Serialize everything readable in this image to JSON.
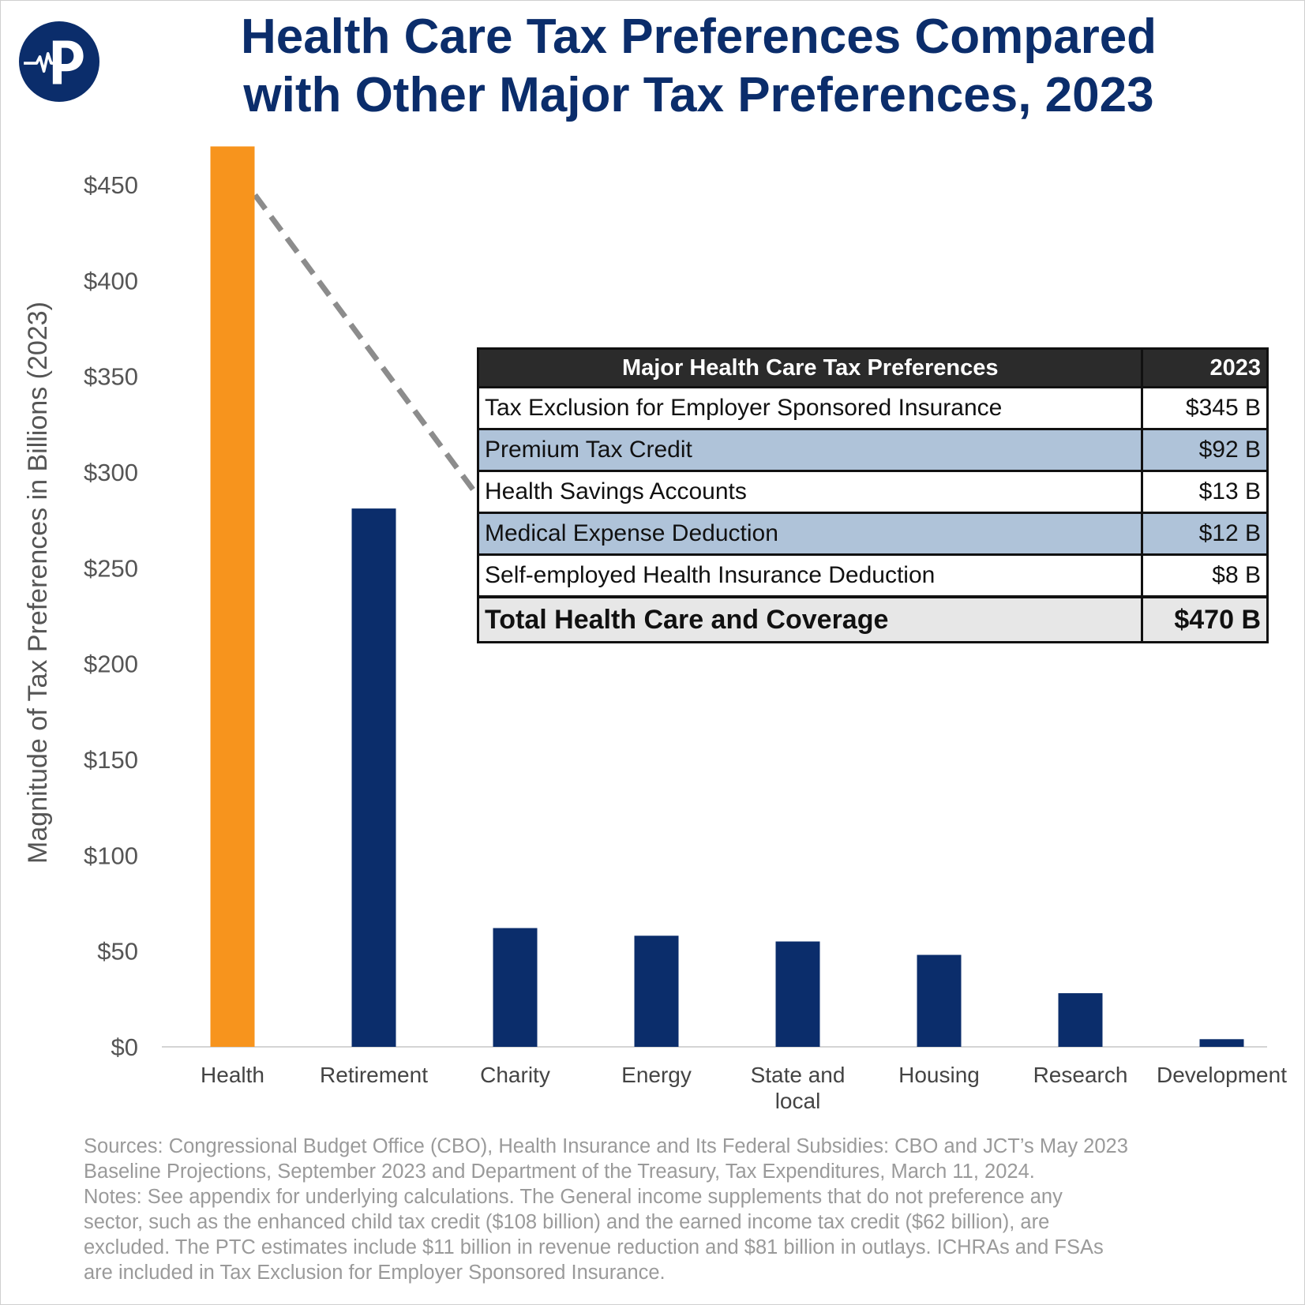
{
  "title": {
    "line1": "Health Care Tax Preferences Compared",
    "line2": "with Other Major Tax Preferences, 2023"
  },
  "logo": {
    "icon": "heartbeat-p-logo-icon",
    "color": "#0b2d6b"
  },
  "colors": {
    "highlight": "#f7941d",
    "bar": "#0b2d6b",
    "dashed": "#8c8c8c"
  },
  "chart_data": {
    "type": "bar",
    "title": "Health Care Tax Preferences Compared with Other Major Tax Preferences, 2023",
    "xlabel": "",
    "ylabel": "Magnitude of Tax Preferences in Billions (2023)",
    "categories": [
      "Health",
      "Retirement",
      "Charity",
      "Energy",
      "State and local",
      "Housing",
      "Research",
      "Development"
    ],
    "values": [
      470,
      281,
      62,
      58,
      55,
      48,
      28,
      4
    ],
    "highlight_index": 0,
    "ylim": [
      0,
      470
    ],
    "yticks": [
      0,
      50,
      100,
      150,
      200,
      250,
      300,
      350,
      400,
      450
    ],
    "ytick_labels": [
      "$0",
      "$50",
      "$100",
      "$150",
      "$200",
      "$250",
      "$300",
      "$350",
      "$400",
      "$450"
    ],
    "grid": false
  },
  "inset_table": {
    "header": [
      "Major Health Care Tax Preferences",
      "2023"
    ],
    "rows": [
      {
        "label": "Tax Exclusion for Employer Sponsored Insurance",
        "value": "$345 B"
      },
      {
        "label": "Premium Tax Credit",
        "value": "$92 B"
      },
      {
        "label": "Health Savings Accounts",
        "value": "$13 B"
      },
      {
        "label": "Medical Expense Deduction",
        "value": "$12 B"
      },
      {
        "label": "Self-employed Health Insurance Deduction",
        "value": "$8 B"
      }
    ],
    "total": {
      "label": "Total Health Care and Coverage",
      "value": "$470 B"
    }
  },
  "notes": [
    "Sources: Congressional Budget Office (CBO), Health Insurance and Its Federal Subsidies: CBO and JCT’s May 2023",
    "Baseline Projections, September 2023 and Department of the Treasury, Tax Expenditures, March 11, 2024.",
    "Notes:  See appendix for underlying calculations. The General income supplements that do not preference any",
    "sector, such as the enhanced child tax credit ($108 billion) and the earned income tax credit ($62 billion), are",
    "excluded. The PTC estimates include $11 billion in revenue reduction and $81 billion in outlays. ICHRAs and FSAs",
    "are included in Tax Exclusion for Employer Sponsored Insurance."
  ]
}
